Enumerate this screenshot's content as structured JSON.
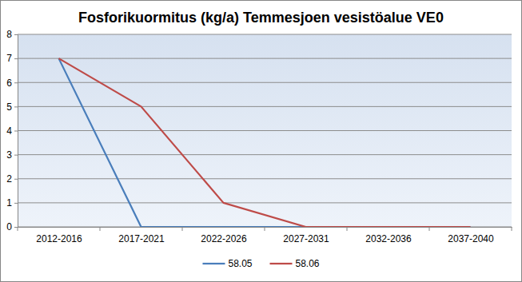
{
  "chart_data": {
    "type": "line",
    "title": "Fosforikuormitus (kg/a) Temmesjoen vesistöalue VE0",
    "categories": [
      "2012-2016",
      "2017-2021",
      "2022-2026",
      "2027-2031",
      "2032-2036",
      "2037-2040"
    ],
    "series": [
      {
        "name": "58.05",
        "color": "#4a7ebb",
        "values": [
          7,
          0,
          0,
          0,
          0,
          0
        ]
      },
      {
        "name": "58.06",
        "color": "#be4b48",
        "values": [
          7,
          5,
          1,
          0,
          0,
          0
        ]
      }
    ],
    "ylim": [
      0,
      8
    ],
    "yticks": [
      0,
      1,
      2,
      3,
      4,
      5,
      6,
      7,
      8
    ],
    "grid": true,
    "legend": "bottom"
  }
}
